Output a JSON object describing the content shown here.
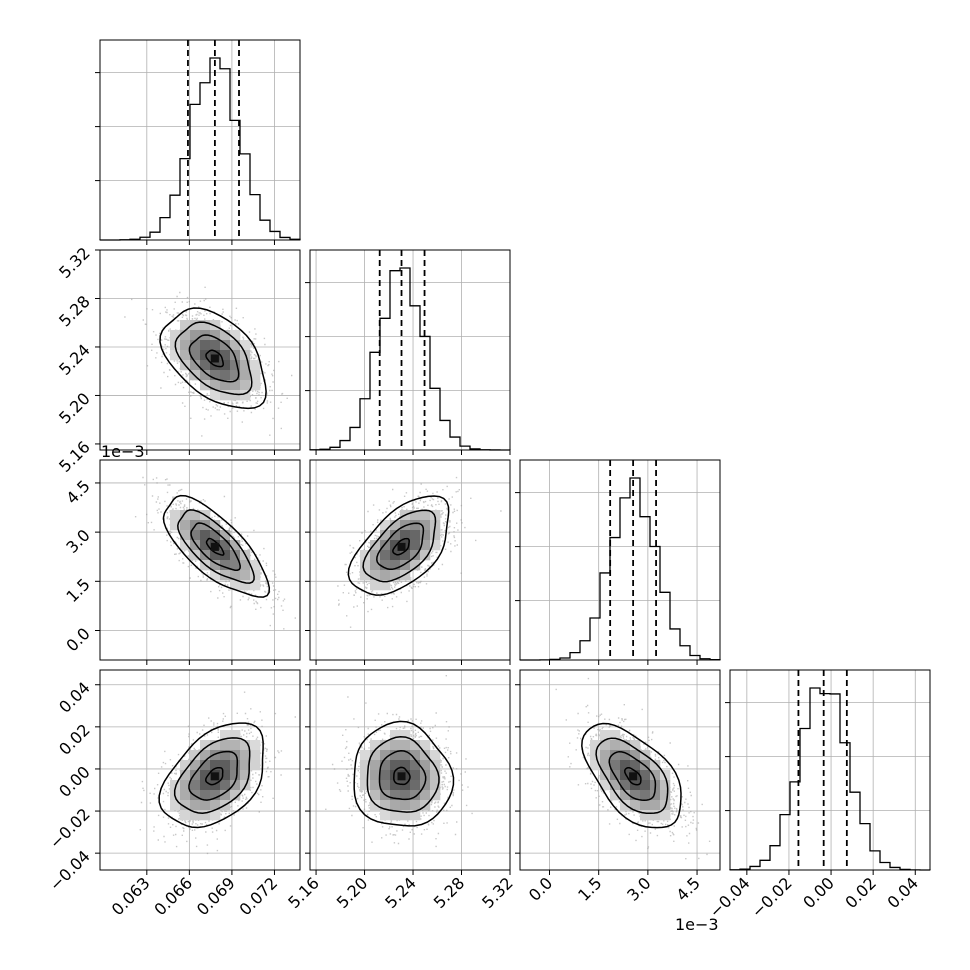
{
  "chart_data": {
    "type": "corner",
    "description_levels": "1D histograms on diagonal with 16/50/84 percentile dashed lines; 2D density (grey shading, scatter points, contours) below diagonal",
    "grid": true,
    "params": [
      {
        "range": [
          0.0597,
          0.0738
        ],
        "ticks": [
          0.063,
          0.066,
          0.069,
          0.072
        ],
        "tick_labels": [
          "0.063",
          "0.066",
          "0.069",
          "0.072"
        ],
        "offset_text": "",
        "mean": 0.0678,
        "sigma": 0.0017,
        "quantiles": [
          0.0659,
          0.0678,
          0.0695
        ]
      },
      {
        "range": [
          5.155,
          5.32
        ],
        "ticks": [
          5.16,
          5.2,
          5.24,
          5.28,
          5.32
        ],
        "tick_labels": [
          "5.16",
          "5.20",
          "5.24",
          "5.28",
          "5.32"
        ],
        "offset_text": "",
        "mean": 5.2305,
        "sigma": 0.019,
        "quantiles": [
          5.2125,
          5.2305,
          5.2495
        ]
      },
      {
        "range": [
          -0.0009,
          0.0052
        ],
        "ticks": [
          0.0,
          0.0015,
          0.003,
          0.0045
        ],
        "tick_labels": [
          "0.0",
          "1.5",
          "3.0",
          "4.5"
        ],
        "offset_text": "1e−3",
        "mean": 0.00255,
        "sigma": 0.0007,
        "quantiles": [
          0.00185,
          0.00255,
          0.00325
        ]
      },
      {
        "range": [
          -0.048,
          0.047
        ],
        "ticks": [
          -0.04,
          -0.02,
          0.0,
          0.02,
          0.04
        ],
        "tick_labels": [
          "−0.04",
          "−0.02",
          "0.00",
          "0.02",
          "0.04"
        ],
        "offset_text": "",
        "mean": -0.0035,
        "sigma": 0.0115,
        "quantiles": [
          -0.0155,
          -0.0035,
          0.0075
        ]
      }
    ],
    "correlations": {
      "1-0": -0.45,
      "2-0": -0.72,
      "2-1": 0.55,
      "3-0": 0.42,
      "3-1": -0.05,
      "3-2": -0.55
    },
    "colors": {
      "contour": "#000000",
      "points": "#9a9a9a",
      "hist": "#000000",
      "grid": "#b0b0b0"
    }
  }
}
